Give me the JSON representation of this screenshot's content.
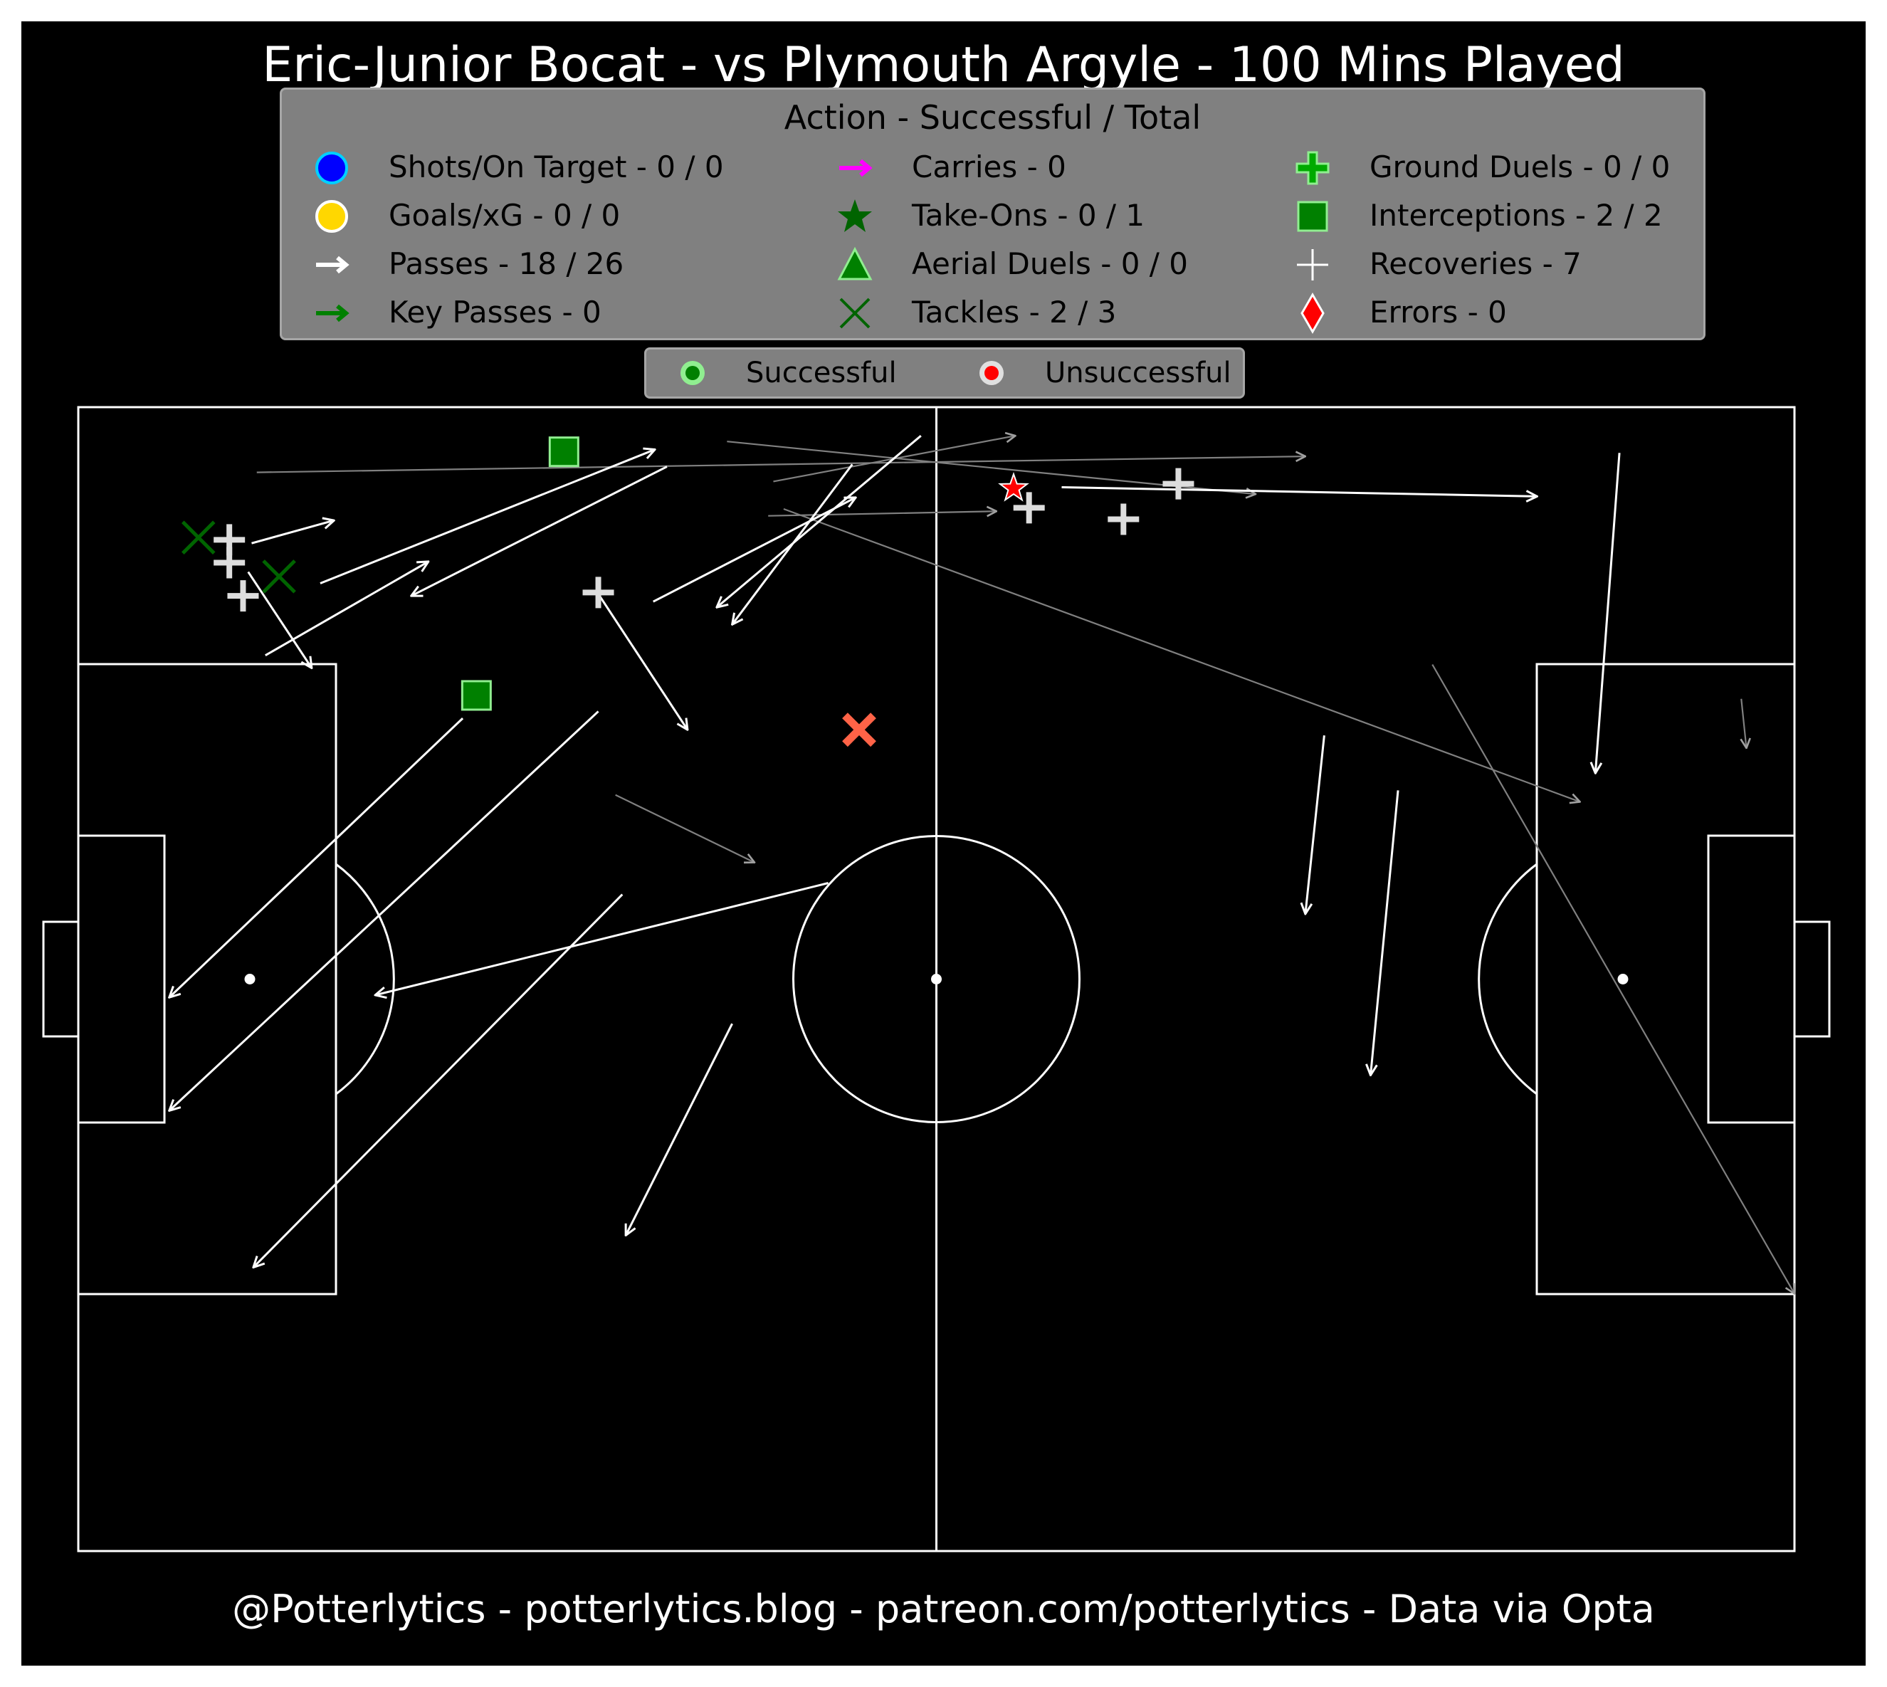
{
  "title": "Eric-Junior Bocat - vs Plymouth Argyle - 100 Mins Played",
  "footer": "@Potterlytics - potterlytics.blog - patreon.com/potterlytics - Data via Opta",
  "legend": {
    "title": "Action - Successful / Total",
    "items": [
      {
        "label": "Shots/On Target - 0 / 0",
        "icon": "shot-icon",
        "color": "#0000ff"
      },
      {
        "label": "Goals/xG - 0 / 0",
        "icon": "goal-icon",
        "color": "#ffd700"
      },
      {
        "label": "Passes - 18 / 26",
        "icon": "pass-icon",
        "color": "#ffffff"
      },
      {
        "label": "Key Passes - 0",
        "icon": "key-pass-icon",
        "color": "#008000"
      },
      {
        "label": "Carries - 0",
        "icon": "carry-icon",
        "color": "#ff00ff"
      },
      {
        "label": "Take-Ons - 0 / 1",
        "icon": "take-on-icon",
        "color": "#006400"
      },
      {
        "label": "Aerial Duels - 0 / 0",
        "icon": "aerial-duel-icon",
        "color": "#008000"
      },
      {
        "label": "Tackles - 2 / 3",
        "icon": "tackle-icon",
        "color": "#006400"
      },
      {
        "label": "Ground Duels - 0 / 0",
        "icon": "ground-duel-icon",
        "color": "#00aa00"
      },
      {
        "label": "Interceptions - 2 / 2",
        "icon": "interception-icon",
        "color": "#008000"
      },
      {
        "label": "Recoveries - 7",
        "icon": "recovery-icon",
        "color": "#ffffff"
      },
      {
        "label": "Errors - 0",
        "icon": "error-icon",
        "color": "#ff0000"
      }
    ]
  },
  "outcome_legend": {
    "successful_label": "Successful",
    "unsuccessful_label": "Unsuccessful",
    "successful_color": "#008000",
    "unsuccessful_color": "#ff0000"
  },
  "chart_data": {
    "type": "scatter",
    "pitch": {
      "length": 100,
      "width": 100,
      "orientation": "left-to-right"
    },
    "colors": {
      "background": "#000000",
      "lines": "#ffffff",
      "pass_complete": "#ffffff",
      "pass_incomplete": "#808080",
      "recovery": "#dddddd",
      "interception": "#008000",
      "tackle_success": "#006400",
      "tackle_fail": "#ff6347",
      "take_on_fail": "#ff0000"
    },
    "passes_completed": [
      {
        "x": [
          10.1,
          14.9
        ],
        "y": [
          88.1,
          90.1
        ]
      },
      {
        "x": [
          9.9,
          13.6
        ],
        "y": [
          85.6,
          77.2
        ]
      },
      {
        "x": [
          14.1,
          33.6
        ],
        "y": [
          84.6,
          96.3
        ]
      },
      {
        "x": [
          10.9,
          20.4
        ],
        "y": [
          78.3,
          86.5
        ]
      },
      {
        "x": [
          34.3,
          19.4
        ],
        "y": [
          94.8,
          83.5
        ]
      },
      {
        "x": [
          31.7,
          10.2
        ],
        "y": [
          57.4,
          24.8
        ]
      },
      {
        "x": [
          30.3,
          5.3
        ],
        "y": [
          73.4,
          38.5
        ]
      },
      {
        "x": [
          30.2,
          35.5
        ],
        "y": [
          83.9,
          71.8
        ]
      },
      {
        "x": [
          33.5,
          45.3
        ],
        "y": [
          83.0,
          92.1
        ]
      },
      {
        "x": [
          45.1,
          38.1
        ],
        "y": [
          95.0,
          81.0
        ]
      },
      {
        "x": [
          38.1,
          31.9
        ],
        "y": [
          46.1,
          27.6
        ]
      },
      {
        "x": [
          43.7,
          17.3
        ],
        "y": [
          58.4,
          48.6
        ]
      },
      {
        "x": [
          57.3,
          85.0
        ],
        "y": [
          93.0,
          92.2
        ]
      },
      {
        "x": [
          89.8,
          88.4
        ],
        "y": [
          96.0,
          68.0
        ]
      },
      {
        "x": [
          72.6,
          71.5
        ],
        "y": [
          71.3,
          55.7
        ]
      },
      {
        "x": [
          76.9,
          75.3
        ],
        "y": [
          66.5,
          41.6
        ]
      },
      {
        "x": [
          22.4,
          5.3
        ],
        "y": [
          72.8,
          48.4
        ]
      },
      {
        "x": [
          49.1,
          37.2
        ],
        "y": [
          97.5,
          82.5
        ]
      }
    ],
    "passes_incomplete": [
      {
        "x": [
          10.4,
          71.5
        ],
        "y": [
          94.3,
          95.7
        ]
      },
      {
        "x": [
          40.2,
          53.5
        ],
        "y": [
          90.5,
          90.9
        ]
      },
      {
        "x": [
          37.8,
          68.6
        ],
        "y": [
          97.0,
          92.4
        ]
      },
      {
        "x": [
          40.5,
          54.6
        ],
        "y": [
          93.5,
          97.5
        ]
      },
      {
        "x": [
          31.3,
          39.4
        ],
        "y": [
          66.1,
          60.2
        ]
      },
      {
        "x": [
          41.1,
          87.5
        ],
        "y": [
          91.1,
          65.5
        ]
      },
      {
        "x": [
          78.9,
          100.0
        ],
        "y": [
          77.5,
          22.5
        ]
      },
      {
        "x": [
          96.9,
          97.2
        ],
        "y": [
          74.5,
          70.2
        ]
      }
    ],
    "recoveries": [
      {
        "x": 8.8,
        "y": 88.4
      },
      {
        "x": 8.8,
        "y": 86.4
      },
      {
        "x": 9.6,
        "y": 83.5
      },
      {
        "x": 30.3,
        "y": 83.8
      },
      {
        "x": 55.4,
        "y": 91.2
      },
      {
        "x": 60.9,
        "y": 90.2
      },
      {
        "x": 64.1,
        "y": 93.3
      }
    ],
    "interceptions": [
      {
        "x": 28.3,
        "y": 96.1
      },
      {
        "x": 23.2,
        "y": 74.8
      }
    ],
    "tackles": [
      {
        "x": 7.0,
        "y": 88.6,
        "outcome": "successful"
      },
      {
        "x": 11.7,
        "y": 85.2,
        "outcome": "successful"
      },
      {
        "x": 45.5,
        "y": 71.8,
        "outcome": "unsuccessful"
      }
    ],
    "take_ons": [
      {
        "x": 54.5,
        "y": 92.9,
        "outcome": "unsuccessful"
      }
    ]
  }
}
